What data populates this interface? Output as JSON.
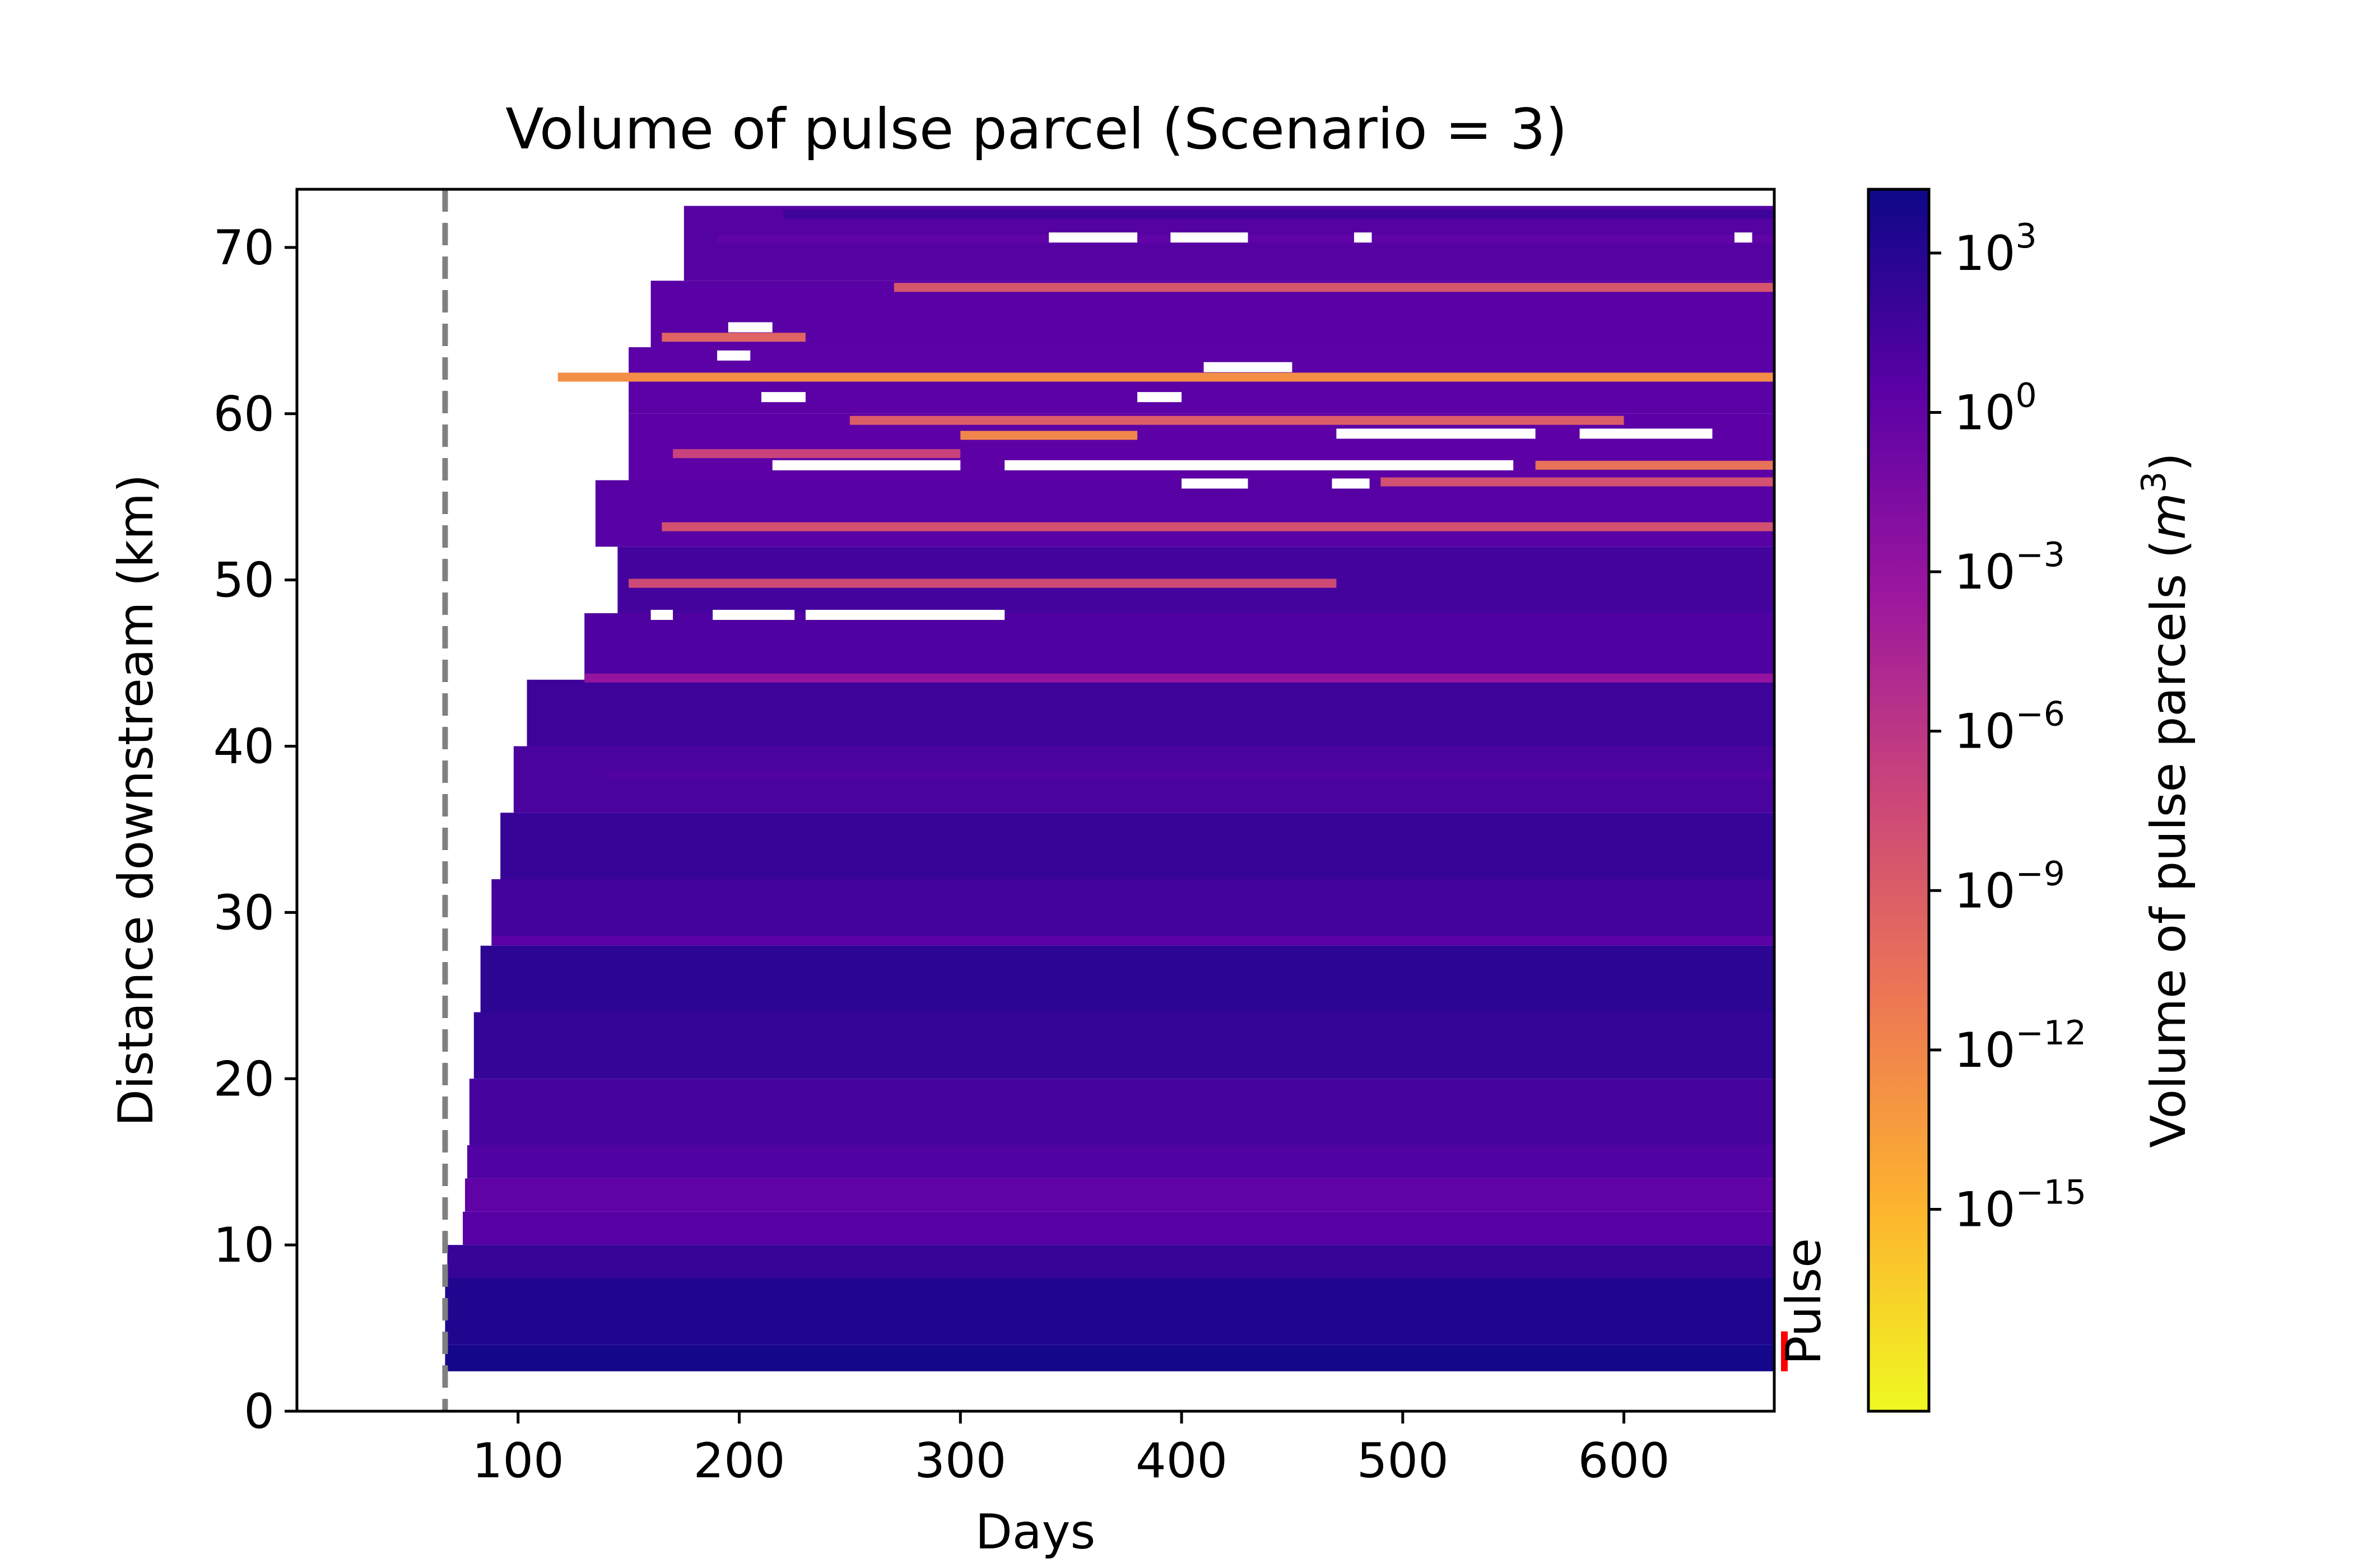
{
  "chart_data": {
    "type": "heatmap",
    "title": "Volume of pulse parcel (Scenario = 3)",
    "xlabel": "Days",
    "ylabel": "Distance downstream (km)",
    "xlim": [
      0,
      668
    ],
    "ylim": [
      0,
      73.5
    ],
    "x_ticks": [
      100,
      200,
      300,
      400,
      500,
      600
    ],
    "y_ticks": [
      0,
      10,
      20,
      30,
      40,
      50,
      60,
      70
    ],
    "pulse_day": 67,
    "pulse_reach_km": [
      2.4,
      4.8
    ],
    "pulse_label": "Pulse",
    "domain_km": [
      2.4,
      72.5
    ],
    "colorbar": {
      "label": "Volume of pulse parcels (m^3)",
      "label_prefix": "Volume of pulse parcels (",
      "label_unit": "m",
      "label_exp": "3",
      "label_suffix": ")",
      "scale": "log",
      "log_range": [
        -18.8,
        4.2
      ],
      "tick_exponents": [
        3,
        0,
        -3,
        -6,
        -9,
        -12,
        -15
      ],
      "tick_base": "10",
      "colormap": [
        "#f0f921",
        "#fdb42f",
        "#ed7953",
        "#cc4778",
        "#9c179e",
        "#5c01a6",
        "#0d0887"
      ]
    },
    "bands": [
      {
        "y0": 2.4,
        "y1": 4.0,
        "start": 67,
        "log": 3.8
      },
      {
        "y0": 4.0,
        "y1": 8.0,
        "start": 67,
        "log": 3.3
      },
      {
        "y0": 8.0,
        "y1": 10.0,
        "start": 68,
        "log": 2.2
      },
      {
        "y0": 10.0,
        "y1": 12.0,
        "start": 75,
        "log": 0.6
      },
      {
        "y0": 12.0,
        "y1": 14.0,
        "start": 76,
        "log": 0.2
      },
      {
        "y0": 14.0,
        "y1": 16.0,
        "start": 77,
        "log": 0.9
      },
      {
        "y0": 16.0,
        "y1": 20.0,
        "start": 78,
        "log": 1.4
      },
      {
        "y0": 20.0,
        "y1": 24.0,
        "start": 80,
        "log": 2.3
      },
      {
        "y0": 24.0,
        "y1": 28.0,
        "start": 83,
        "log": 2.7
      },
      {
        "y0": 28.0,
        "y1": 32.0,
        "start": 88,
        "log": 1.6
      },
      {
        "y0": 32.0,
        "y1": 36.0,
        "start": 92,
        "log": 2.2
      },
      {
        "y0": 36.0,
        "y1": 40.0,
        "start": 98,
        "log": 1.2
      },
      {
        "y0": 40.0,
        "y1": 44.0,
        "start": 104,
        "log": 1.8
      },
      {
        "y0": 44.0,
        "y1": 48.0,
        "start": 130,
        "log": 1.0
      },
      {
        "y0": 48.0,
        "y1": 52.0,
        "start": 145,
        "log": 1.5
      },
      {
        "y0": 52.0,
        "y1": 56.0,
        "start": 135,
        "log": 0.6
      },
      {
        "y0": 56.0,
        "y1": 60.0,
        "start": 150,
        "log": 0.3
      },
      {
        "y0": 60.0,
        "y1": 64.0,
        "start": 150,
        "log": 0.4
      },
      {
        "y0": 64.0,
        "y1": 68.0,
        "start": 160,
        "log": 0.5
      },
      {
        "y0": 68.0,
        "y1": 72.5,
        "start": 175,
        "log": 0.7
      }
    ],
    "streaks": [
      {
        "y": 72.0,
        "x0": 220,
        "x1": 668,
        "log": 1.8
      },
      {
        "y": 70.5,
        "x0": 190,
        "x1": 668,
        "log": 0.2
      },
      {
        "y": 67.6,
        "x0": 270,
        "x1": 668,
        "log": -8.5
      },
      {
        "y": 64.6,
        "x0": 165,
        "x1": 230,
        "log": -9.5
      },
      {
        "y": 62.2,
        "x0": 118,
        "x1": 668,
        "log": -12.5
      },
      {
        "y": 59.6,
        "x0": 250,
        "x1": 600,
        "log": -9.0
      },
      {
        "y": 58.7,
        "x0": 300,
        "x1": 380,
        "log": -12.0
      },
      {
        "y": 57.6,
        "x0": 170,
        "x1": 300,
        "log": -7.0
      },
      {
        "y": 56.9,
        "x0": 560,
        "x1": 668,
        "log": -10.5
      },
      {
        "y": 55.9,
        "x0": 490,
        "x1": 668,
        "log": -8.0
      },
      {
        "y": 53.2,
        "x0": 165,
        "x1": 668,
        "log": -8.0
      },
      {
        "y": 49.8,
        "x0": 150,
        "x1": 470,
        "log": -7.5
      },
      {
        "y": 44.1,
        "x0": 130,
        "x1": 668,
        "log": -3.0
      },
      {
        "y": 38.3,
        "x0": 140,
        "x1": 668,
        "log": 0.8
      },
      {
        "y": 28.3,
        "x0": 88,
        "x1": 668,
        "log": 0.4
      }
    ],
    "gaps": [
      {
        "y": 70.6,
        "x0": 340,
        "x1": 380
      },
      {
        "y": 70.6,
        "x0": 395,
        "x1": 430
      },
      {
        "y": 70.6,
        "x0": 478,
        "x1": 486
      },
      {
        "y": 70.6,
        "x0": 650,
        "x1": 658
      },
      {
        "y": 65.2,
        "x0": 195,
        "x1": 215
      },
      {
        "y": 63.5,
        "x0": 190,
        "x1": 205
      },
      {
        "y": 62.8,
        "x0": 410,
        "x1": 450
      },
      {
        "y": 61.0,
        "x0": 210,
        "x1": 230
      },
      {
        "y": 61.0,
        "x0": 380,
        "x1": 400
      },
      {
        "y": 58.8,
        "x0": 470,
        "x1": 560
      },
      {
        "y": 58.8,
        "x0": 580,
        "x1": 640
      },
      {
        "y": 56.9,
        "x0": 215,
        "x1": 300
      },
      {
        "y": 56.9,
        "x0": 320,
        "x1": 550
      },
      {
        "y": 55.8,
        "x0": 400,
        "x1": 430
      },
      {
        "y": 55.8,
        "x0": 468,
        "x1": 485
      },
      {
        "y": 47.9,
        "x0": 160,
        "x1": 170
      },
      {
        "y": 47.9,
        "x0": 188,
        "x1": 225
      },
      {
        "y": 47.9,
        "x0": 230,
        "x1": 320
      }
    ]
  }
}
